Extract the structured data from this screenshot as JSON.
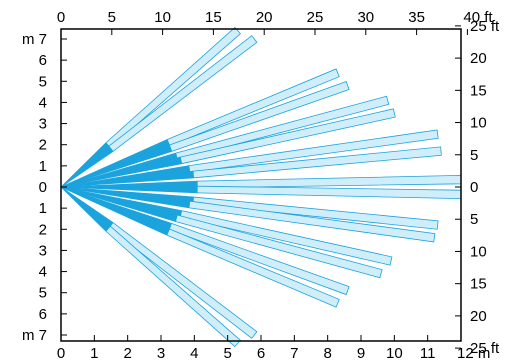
{
  "colors": {
    "beam_fill": "#cfeefa",
    "beam_stroke": "#1aa3dd",
    "frame": "#000000",
    "background": "#ffffff"
  },
  "axes": {
    "top_ft": {
      "labels": [
        "0",
        "5",
        "10",
        "15",
        "20",
        "25",
        "30",
        "35",
        "40 ft"
      ]
    },
    "bottom_m": {
      "labels": [
        "0",
        "1",
        "2",
        "3",
        "4",
        "5",
        "6",
        "7",
        "8",
        "9",
        "10",
        "11",
        "12 m"
      ]
    },
    "left_m": {
      "labels": [
        "m 7",
        "6",
        "5",
        "4",
        "3",
        "2",
        "1",
        "0",
        "1",
        "2",
        "3",
        "4",
        "5",
        "6",
        "m 7"
      ]
    },
    "right_ft": {
      "labels": [
        "25 ft",
        "20",
        "15",
        "10",
        "5",
        "0",
        "5",
        "10",
        "15",
        "20",
        "25 ft"
      ]
    }
  },
  "beams": [
    {
      "name": "beam-up-1",
      "end_m": [
        5.3,
        7.4
      ],
      "inner_len_m": 1.9
    },
    {
      "name": "beam-up-2",
      "end_m": [
        5.8,
        7.0
      ],
      "inner_len_m": 1.9
    },
    {
      "name": "beam-up-3",
      "end_m": [
        8.3,
        5.4
      ],
      "inner_len_m": 3.5
    },
    {
      "name": "beam-up-4",
      "end_m": [
        8.6,
        4.8
      ],
      "inner_len_m": 3.5
    },
    {
      "name": "beam-up-5",
      "end_m": [
        9.8,
        4.1
      ],
      "inner_len_m": 3.6
    },
    {
      "name": "beam-up-6",
      "end_m": [
        10.0,
        3.5
      ],
      "inner_len_m": 3.7
    },
    {
      "name": "beam-up-7",
      "end_m": [
        11.3,
        2.5
      ],
      "inner_len_m": 3.9
    },
    {
      "name": "beam-up-8",
      "end_m": [
        11.4,
        1.7
      ],
      "inner_len_m": 4.0
    },
    {
      "name": "beam-mid-1",
      "end_m": [
        12.0,
        0.35
      ],
      "inner_len_m": 4.1
    },
    {
      "name": "beam-mid-2",
      "end_m": [
        12.0,
        -0.35
      ],
      "inner_len_m": 4.1
    },
    {
      "name": "beam-down-1",
      "end_m": [
        11.3,
        -1.8
      ],
      "inner_len_m": 4.0
    },
    {
      "name": "beam-down-2",
      "end_m": [
        11.2,
        -2.4
      ],
      "inner_len_m": 3.9
    },
    {
      "name": "beam-down-3",
      "end_m": [
        9.9,
        -3.5
      ],
      "inner_len_m": 3.7
    },
    {
      "name": "beam-down-4",
      "end_m": [
        9.6,
        -4.1
      ],
      "inner_len_m": 3.6
    },
    {
      "name": "beam-down-5",
      "end_m": [
        8.6,
        -4.9
      ],
      "inner_len_m": 3.5
    },
    {
      "name": "beam-down-6",
      "end_m": [
        8.3,
        -5.5
      ],
      "inner_len_m": 3.5
    },
    {
      "name": "beam-down-7",
      "end_m": [
        5.8,
        -7.0
      ],
      "inner_len_m": 1.9
    },
    {
      "name": "beam-down-8",
      "end_m": [
        5.3,
        -7.4
      ],
      "inner_len_m": 1.9
    }
  ]
}
